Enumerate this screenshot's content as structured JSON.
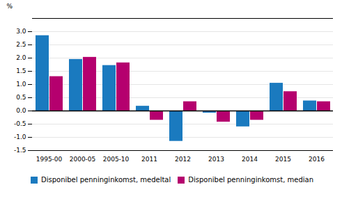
{
  "chart_data": {
    "type": "bar",
    "categories": [
      "1995-00",
      "2000-05",
      "2005-10",
      "2011",
      "2012",
      "2013",
      "2014",
      "2015",
      "2016"
    ],
    "series": [
      {
        "name": "Disponibel penninginkomst, medeltal",
        "color": "#1a7abf",
        "values": [
          2.85,
          1.95,
          1.72,
          0.18,
          -1.15,
          -0.08,
          -0.6,
          1.05,
          0.38
        ]
      },
      {
        "name": "Disponibel penninginkomst, median",
        "color": "#b5006e",
        "values": [
          1.3,
          2.03,
          1.82,
          -0.35,
          0.35,
          -0.42,
          -0.35,
          0.73,
          0.35
        ]
      }
    ],
    "ylabel": "%",
    "ylim": [
      -1.5,
      3.5
    ],
    "yticks": [
      -1.5,
      {
        "value": -1.0,
        "label": "-1.0"
      },
      -0.5,
      {
        "value": 0.0,
        "label": "0.0"
      },
      0.5,
      {
        "value": 1.0,
        "label": "1.0"
      },
      1.5,
      {
        "value": 2.0,
        "label": "2.0"
      },
      2.5,
      {
        "value": 3.0,
        "label": "3.0"
      }
    ],
    "grid": true,
    "legend": "bottom"
  }
}
